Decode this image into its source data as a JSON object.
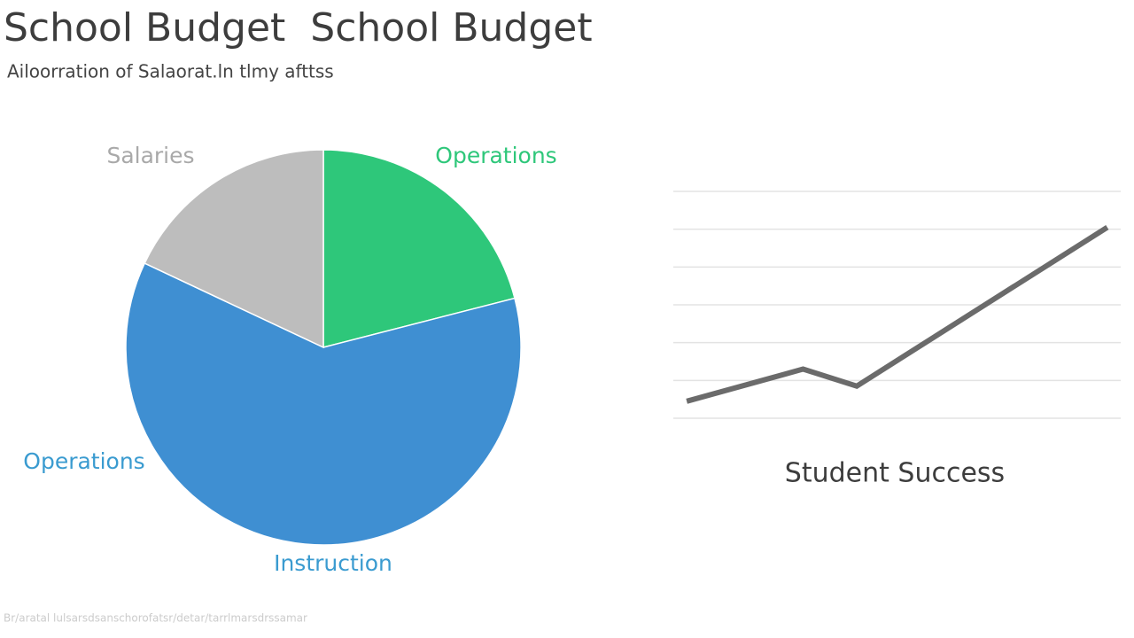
{
  "chart_data": [
    {
      "type": "pie",
      "title": "School Budget  School Budget",
      "subtitle": "Ailoorration of Salaorat.ln tlmy afttss",
      "categories": [
        "Operations",
        "Instruction",
        "Salaries"
      ],
      "values": [
        21,
        61,
        18
      ],
      "colors": [
        "#2ec77a",
        "#3f8fd2",
        "#bdbdbd"
      ],
      "label_colors": [
        "#2ec77a",
        "#3a9bd0",
        "#a9a9a9"
      ],
      "annotation": "Operations",
      "footer": "Br/aratal lulsarsdsanschorofatsr/detar/tarrlmarsdrssamar"
    },
    {
      "type": "line",
      "title": "Student Success",
      "x": [
        0.3,
        2.9,
        4.1,
        9.7
      ],
      "values": [
        0.45,
        1.3,
        0.85,
        5.05
      ],
      "color": "#6b6b6b",
      "xlim": [
        0,
        10
      ],
      "ylim": [
        0,
        6
      ],
      "yticks": [
        0,
        1,
        2,
        3,
        4,
        5,
        6
      ],
      "grid": true
    }
  ]
}
